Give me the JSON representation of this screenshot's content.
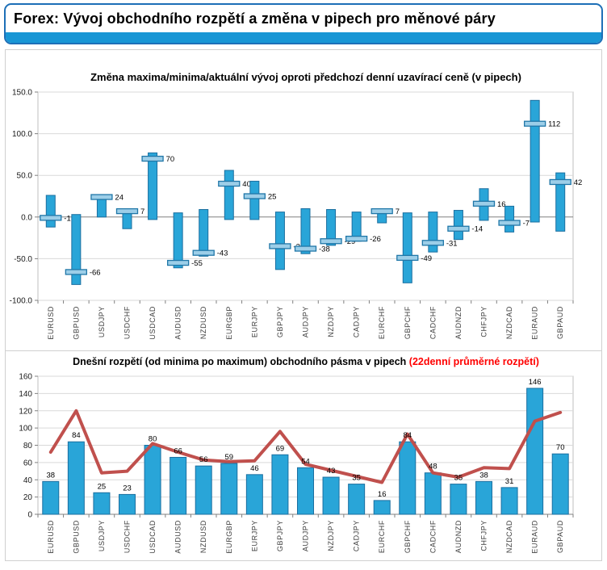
{
  "header": {
    "title": "Forex: Vývoj obchodního rozpětí a změna v pipech pro měnové páry"
  },
  "colors": {
    "header_border": "#1d6fb7",
    "header_accent": "#1896d5",
    "bar_fill": "#29a5d8",
    "bar_stroke": "#1b6fa0",
    "marker_fill": "#9ccee8",
    "marker_stroke": "#2077a8",
    "avg_line": "#c0504d",
    "title_annotation": "#ff0000",
    "grid": "#d9d9d9",
    "axis": "#808080",
    "plot_border": "#bfbfbf",
    "label_text": "#000000",
    "category_text": "#3f3f3f"
  },
  "chart_data": [
    {
      "type": "bar",
      "subtype": "high-low-close-range",
      "title": "Změna maxima/minima/aktuální vývoj oproti předchozí denní uzavírací ceně (v pipech)",
      "xlabel": "",
      "ylabel": "",
      "ylim": [
        -100,
        150
      ],
      "ytick_step": 50,
      "ytick_labels": [
        "150.0",
        "100.0",
        "50.0",
        "0.0",
        "-50.0",
        "-100.0"
      ],
      "grid": true,
      "legend": "none",
      "categories": [
        "EURUSD",
        "GBPUSD",
        "USDJPY",
        "USDCHF",
        "USDCAD",
        "AUDUSD",
        "NZDUSD",
        "EURGBP",
        "EURJPY",
        "GBPJPY",
        "AUDJPY",
        "NZDJPY",
        "CADJPY",
        "EURCHF",
        "GBPCHF",
        "CADCHF",
        "AUDNZD",
        "CHFJPY",
        "NZDCAD",
        "EURAUD",
        "GBPAUD"
      ],
      "series": [
        {
          "name": "maximum",
          "values": [
            26,
            3,
            25,
            9,
            77,
            5,
            9,
            56,
            43,
            6,
            10,
            9,
            6,
            9,
            5,
            6,
            8,
            34,
            13,
            140,
            53
          ]
        },
        {
          "name": "minimum",
          "values": [
            -12,
            -81,
            0,
            -14,
            -3,
            -61,
            -47,
            -3,
            -3,
            -63,
            -44,
            -34,
            -29,
            -7,
            -79,
            -42,
            -27,
            -4,
            -18,
            -6,
            -17
          ]
        },
        {
          "name": "aktuální",
          "values": [
            -1,
            -66,
            24,
            7,
            70,
            -55,
            -43,
            40,
            25,
            -35,
            -38,
            -29,
            -26,
            7,
            -49,
            -31,
            -14,
            16,
            -7,
            112,
            42
          ]
        }
      ],
      "data_labels": [
        "-1",
        "-66",
        "24",
        "7",
        "70",
        "-55",
        "-43",
        "40",
        "25",
        "-35",
        "-38",
        "-29",
        "-26",
        "7",
        "-49",
        "-31",
        "-14",
        "16",
        "-7",
        "112",
        "42"
      ]
    },
    {
      "type": "bar",
      "subtype": "bar-with-line-overlay",
      "title": "Dnešní rozpětí (od minima po maximum) obchodního pásma v pipech ",
      "title_annotation": "(22denní průměrné rozpětí)",
      "xlabel": "",
      "ylabel": "",
      "ylim": [
        0,
        160
      ],
      "ytick_step": 20,
      "ytick_labels": [
        "160",
        "140",
        "120",
        "100",
        "80",
        "60",
        "40",
        "20",
        "0"
      ],
      "grid": true,
      "legend": "none",
      "categories": [
        "EURUSD",
        "GBPUSD",
        "USDJPY",
        "USDCHF",
        "USDCAD",
        "AUDUSD",
        "NZDUSD",
        "EURGBP",
        "EURJPY",
        "GBPJPY",
        "AUDJPY",
        "NZDJPY",
        "CADJPY",
        "EURCHF",
        "GBPCHF",
        "CADCHF",
        "AUDNZD",
        "CHFJPY",
        "NZDCAD",
        "EURAUD",
        "GBPAUD"
      ],
      "series": [
        {
          "name": "Dnešní rozpětí",
          "type": "bar",
          "values": [
            38,
            84,
            25,
            23,
            80,
            66,
            56,
            59,
            46,
            69,
            54,
            43,
            35,
            16,
            84,
            48,
            35,
            38,
            31,
            146,
            70
          ]
        },
        {
          "name": "22denní průměrné rozpětí",
          "type": "line",
          "values": [
            72,
            120,
            48,
            50,
            82,
            72,
            63,
            61,
            62,
            96,
            58,
            51,
            44,
            37,
            93,
            48,
            43,
            54,
            53,
            108,
            118
          ]
        }
      ],
      "data_labels": [
        "38",
        "84",
        "25",
        "23",
        "80",
        "66",
        "56",
        "59",
        "46",
        "69",
        "54",
        "43",
        "35",
        "16",
        "84",
        "48",
        "35",
        "38",
        "31",
        "146",
        "70"
      ]
    }
  ]
}
